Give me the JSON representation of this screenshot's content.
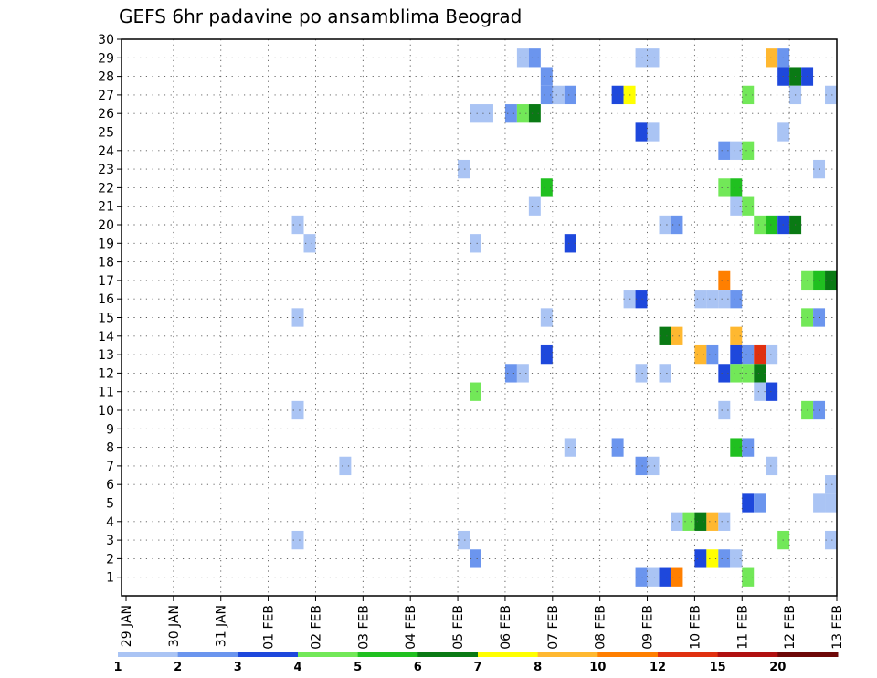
{
  "chart_data": {
    "type": "heatmap",
    "title": "GEFS 6hr padavine po ansamblima Beograd",
    "xlabel": "",
    "ylabel": "",
    "x_tick_labels": [
      "29 JAN",
      "30 JAN",
      "31 JAN",
      "01 FEB",
      "02 FEB",
      "03 FEB",
      "04 FEB",
      "05 FEB",
      "06 FEB",
      "07 FEB",
      "08 FEB",
      "09 FEB",
      "10 FEB",
      "11 FEB",
      "12 FEB",
      "13 FEB"
    ],
    "y_tick_labels": [
      "1",
      "2",
      "3",
      "4",
      "5",
      "6",
      "7",
      "8",
      "9",
      "10",
      "11",
      "12",
      "13",
      "14",
      "15",
      "16",
      "17",
      "18",
      "19",
      "20",
      "21",
      "22",
      "23",
      "24",
      "25",
      "26",
      "27",
      "28",
      "29",
      "30"
    ],
    "x_range_days": [
      0,
      15
    ],
    "y_range": [
      0,
      30
    ],
    "grid": true,
    "legend_position": "bottom",
    "legend": {
      "labels": [
        "1",
        "2",
        "3",
        "4",
        "5",
        "6",
        "7",
        "8",
        "10",
        "12",
        "15",
        "20"
      ],
      "colors": [
        "#aac4f4",
        "#6b95ee",
        "#1e48dc",
        "#72e858",
        "#20c020",
        "#0a7a14",
        "#ffff00",
        "#ffb830",
        "#ff7f00",
        "#e03010",
        "#b01010",
        "#6e0808"
      ]
    },
    "cell_days": 0.25,
    "cells": [
      {
        "d": 8.5,
        "m": 29,
        "c": 1
      },
      {
        "d": 8.75,
        "m": 29,
        "c": 2
      },
      {
        "d": 11.0,
        "m": 29,
        "c": 1
      },
      {
        "d": 11.25,
        "m": 29,
        "c": 1
      },
      {
        "d": 13.75,
        "m": 29,
        "c": 8
      },
      {
        "d": 14.0,
        "m": 29,
        "c": 2
      },
      {
        "d": 9.0,
        "m": 28,
        "c": 2
      },
      {
        "d": 14.0,
        "m": 28,
        "c": 3
      },
      {
        "d": 14.25,
        "m": 28,
        "c": 6
      },
      {
        "d": 14.5,
        "m": 28,
        "c": 3
      },
      {
        "d": 9.0,
        "m": 27,
        "c": 2
      },
      {
        "d": 9.25,
        "m": 27,
        "c": 1
      },
      {
        "d": 9.5,
        "m": 27,
        "c": 2
      },
      {
        "d": 10.5,
        "m": 27,
        "c": 3
      },
      {
        "d": 10.75,
        "m": 27,
        "c": 7
      },
      {
        "d": 13.25,
        "m": 27,
        "c": 4
      },
      {
        "d": 14.25,
        "m": 27,
        "c": 1
      },
      {
        "d": 15.0,
        "m": 27,
        "c": 1
      },
      {
        "d": 7.5,
        "m": 26,
        "c": 1
      },
      {
        "d": 7.75,
        "m": 26,
        "c": 1
      },
      {
        "d": 8.25,
        "m": 26,
        "c": 2
      },
      {
        "d": 8.5,
        "m": 26,
        "c": 4
      },
      {
        "d": 8.75,
        "m": 26,
        "c": 6
      },
      {
        "d": 11.0,
        "m": 25,
        "c": 3
      },
      {
        "d": 11.25,
        "m": 25,
        "c": 1
      },
      {
        "d": 14.0,
        "m": 25,
        "c": 1
      },
      {
        "d": 12.75,
        "m": 24,
        "c": 2
      },
      {
        "d": 13.0,
        "m": 24,
        "c": 1
      },
      {
        "d": 13.25,
        "m": 24,
        "c": 4
      },
      {
        "d": 7.25,
        "m": 23,
        "c": 1
      },
      {
        "d": 14.75,
        "m": 23,
        "c": 1
      },
      {
        "d": 9.0,
        "m": 22,
        "c": 5
      },
      {
        "d": 12.75,
        "m": 22,
        "c": 4
      },
      {
        "d": 13.0,
        "m": 22,
        "c": 5
      },
      {
        "d": 8.75,
        "m": 21,
        "c": 1
      },
      {
        "d": 13.0,
        "m": 21,
        "c": 1
      },
      {
        "d": 13.25,
        "m": 21,
        "c": 4
      },
      {
        "d": 3.75,
        "m": 20,
        "c": 1
      },
      {
        "d": 11.5,
        "m": 20,
        "c": 1
      },
      {
        "d": 11.75,
        "m": 20,
        "c": 2
      },
      {
        "d": 13.5,
        "m": 20,
        "c": 4
      },
      {
        "d": 13.75,
        "m": 20,
        "c": 5
      },
      {
        "d": 14.0,
        "m": 20,
        "c": 3
      },
      {
        "d": 14.25,
        "m": 20,
        "c": 6
      },
      {
        "d": 4.0,
        "m": 19,
        "c": 1
      },
      {
        "d": 7.5,
        "m": 19,
        "c": 1
      },
      {
        "d": 9.5,
        "m": 19,
        "c": 3
      },
      {
        "d": 12.75,
        "m": 17,
        "c": 9
      },
      {
        "d": 14.5,
        "m": 17,
        "c": 4
      },
      {
        "d": 14.75,
        "m": 17,
        "c": 5
      },
      {
        "d": 15.0,
        "m": 17,
        "c": 6
      },
      {
        "d": 10.75,
        "m": 16,
        "c": 1
      },
      {
        "d": 11.0,
        "m": 16,
        "c": 3
      },
      {
        "d": 12.25,
        "m": 16,
        "c": 1
      },
      {
        "d": 12.5,
        "m": 16,
        "c": 1
      },
      {
        "d": 12.75,
        "m": 16,
        "c": 1
      },
      {
        "d": 13.0,
        "m": 16,
        "c": 2
      },
      {
        "d": 3.75,
        "m": 15,
        "c": 1
      },
      {
        "d": 9.0,
        "m": 15,
        "c": 1
      },
      {
        "d": 14.5,
        "m": 15,
        "c": 4
      },
      {
        "d": 14.75,
        "m": 15,
        "c": 2
      },
      {
        "d": 11.5,
        "m": 14,
        "c": 6
      },
      {
        "d": 11.75,
        "m": 14,
        "c": 8
      },
      {
        "d": 13.0,
        "m": 14,
        "c": 8
      },
      {
        "d": 9.0,
        "m": 13,
        "c": 3
      },
      {
        "d": 12.25,
        "m": 13,
        "c": 8
      },
      {
        "d": 12.5,
        "m": 13,
        "c": 2
      },
      {
        "d": 13.0,
        "m": 13,
        "c": 3
      },
      {
        "d": 13.25,
        "m": 13,
        "c": 2
      },
      {
        "d": 13.5,
        "m": 13,
        "c": 10
      },
      {
        "d": 13.75,
        "m": 13,
        "c": 1
      },
      {
        "d": 8.25,
        "m": 12,
        "c": 2
      },
      {
        "d": 8.5,
        "m": 12,
        "c": 1
      },
      {
        "d": 11.0,
        "m": 12,
        "c": 1
      },
      {
        "d": 11.5,
        "m": 12,
        "c": 1
      },
      {
        "d": 12.75,
        "m": 12,
        "c": 3
      },
      {
        "d": 13.0,
        "m": 12,
        "c": 4
      },
      {
        "d": 13.25,
        "m": 12,
        "c": 4
      },
      {
        "d": 13.5,
        "m": 12,
        "c": 6
      },
      {
        "d": 7.5,
        "m": 11,
        "c": 4
      },
      {
        "d": 13.5,
        "m": 11,
        "c": 1
      },
      {
        "d": 13.75,
        "m": 11,
        "c": 3
      },
      {
        "d": 3.75,
        "m": 10,
        "c": 1
      },
      {
        "d": 12.75,
        "m": 10,
        "c": 1
      },
      {
        "d": 14.5,
        "m": 10,
        "c": 4
      },
      {
        "d": 14.75,
        "m": 10,
        "c": 2
      },
      {
        "d": 9.5,
        "m": 8,
        "c": 1
      },
      {
        "d": 10.5,
        "m": 8,
        "c": 2
      },
      {
        "d": 13.0,
        "m": 8,
        "c": 5
      },
      {
        "d": 13.25,
        "m": 8,
        "c": 2
      },
      {
        "d": 4.75,
        "m": 7,
        "c": 1
      },
      {
        "d": 11.0,
        "m": 7,
        "c": 2
      },
      {
        "d": 11.25,
        "m": 7,
        "c": 1
      },
      {
        "d": 13.75,
        "m": 7,
        "c": 1
      },
      {
        "d": 15.0,
        "m": 6,
        "c": 1
      },
      {
        "d": 13.25,
        "m": 5,
        "c": 3
      },
      {
        "d": 13.5,
        "m": 5,
        "c": 2
      },
      {
        "d": 14.75,
        "m": 5,
        "c": 1
      },
      {
        "d": 15.0,
        "m": 5,
        "c": 1
      },
      {
        "d": 11.75,
        "m": 4,
        "c": 1
      },
      {
        "d": 12.0,
        "m": 4,
        "c": 4
      },
      {
        "d": 12.25,
        "m": 4,
        "c": 6
      },
      {
        "d": 12.5,
        "m": 4,
        "c": 8
      },
      {
        "d": 12.75,
        "m": 4,
        "c": 1
      },
      {
        "d": 3.75,
        "m": 3,
        "c": 1
      },
      {
        "d": 7.25,
        "m": 3,
        "c": 1
      },
      {
        "d": 14.0,
        "m": 3,
        "c": 4
      },
      {
        "d": 15.0,
        "m": 3,
        "c": 1
      },
      {
        "d": 7.5,
        "m": 2,
        "c": 2
      },
      {
        "d": 12.25,
        "m": 2,
        "c": 3
      },
      {
        "d": 12.5,
        "m": 2,
        "c": 7
      },
      {
        "d": 12.75,
        "m": 2,
        "c": 2
      },
      {
        "d": 13.0,
        "m": 2,
        "c": 1
      },
      {
        "d": 11.0,
        "m": 1,
        "c": 2
      },
      {
        "d": 11.25,
        "m": 1,
        "c": 1
      },
      {
        "d": 11.5,
        "m": 1,
        "c": 3
      },
      {
        "d": 11.75,
        "m": 1,
        "c": 9
      },
      {
        "d": 13.25,
        "m": 1,
        "c": 4
      }
    ]
  }
}
